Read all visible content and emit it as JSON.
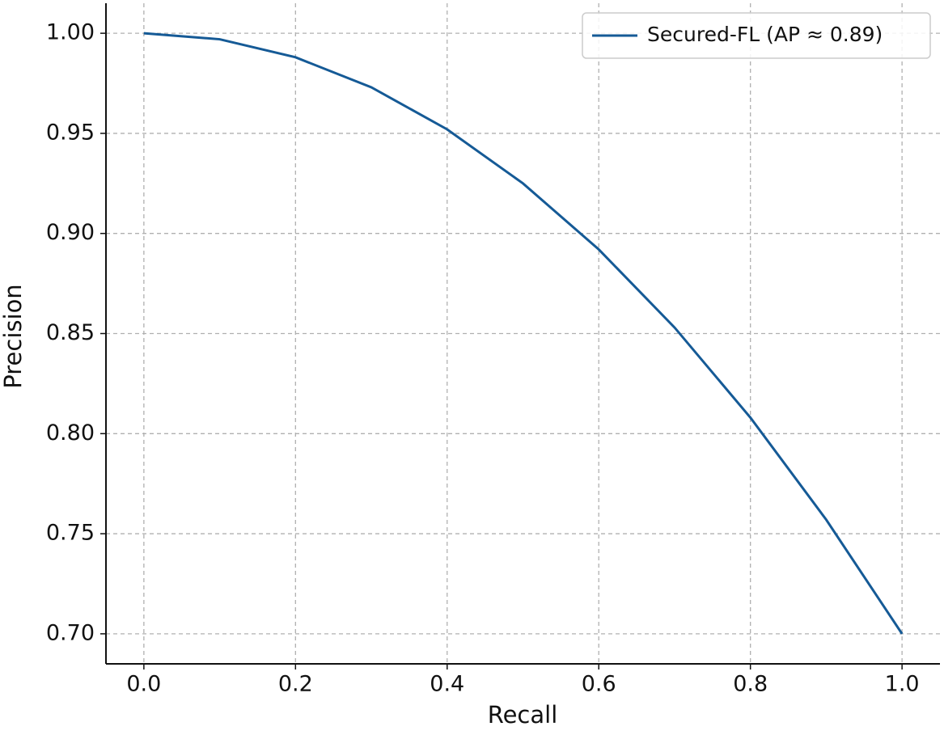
{
  "chart_data": {
    "type": "line",
    "xlabel": "Recall",
    "ylabel": "Precision",
    "x": [
      0,
      0.1,
      0.2,
      0.3,
      0.4,
      0.5,
      0.6,
      0.7,
      0.8,
      0.9,
      1
    ],
    "series": [
      {
        "name": "Secured-FL (AP ≈ 0.89)",
        "color": "#155a96",
        "values": [
          1.0,
          0.997,
          0.988,
          0.973,
          0.952,
          0.925,
          0.892,
          0.853,
          0.808,
          0.757,
          0.7
        ]
      }
    ],
    "xlim": [
      -0.05,
      1.05
    ],
    "ylim": [
      0.685,
      1.015
    ],
    "xticks": [
      {
        "value": 0,
        "label": "0.0"
      },
      0.2,
      0.4,
      0.6,
      0.8,
      {
        "value": 1,
        "label": "1.0"
      }
    ],
    "yticks": [
      {
        "value": 0.7,
        "label": "0.70"
      },
      0.75,
      {
        "value": 0.8,
        "label": "0.80"
      },
      0.85,
      {
        "value": 0.9,
        "label": "0.90"
      },
      0.95,
      {
        "value": 1,
        "label": "1.00"
      }
    ],
    "grid": true,
    "legend": "upper right"
  }
}
